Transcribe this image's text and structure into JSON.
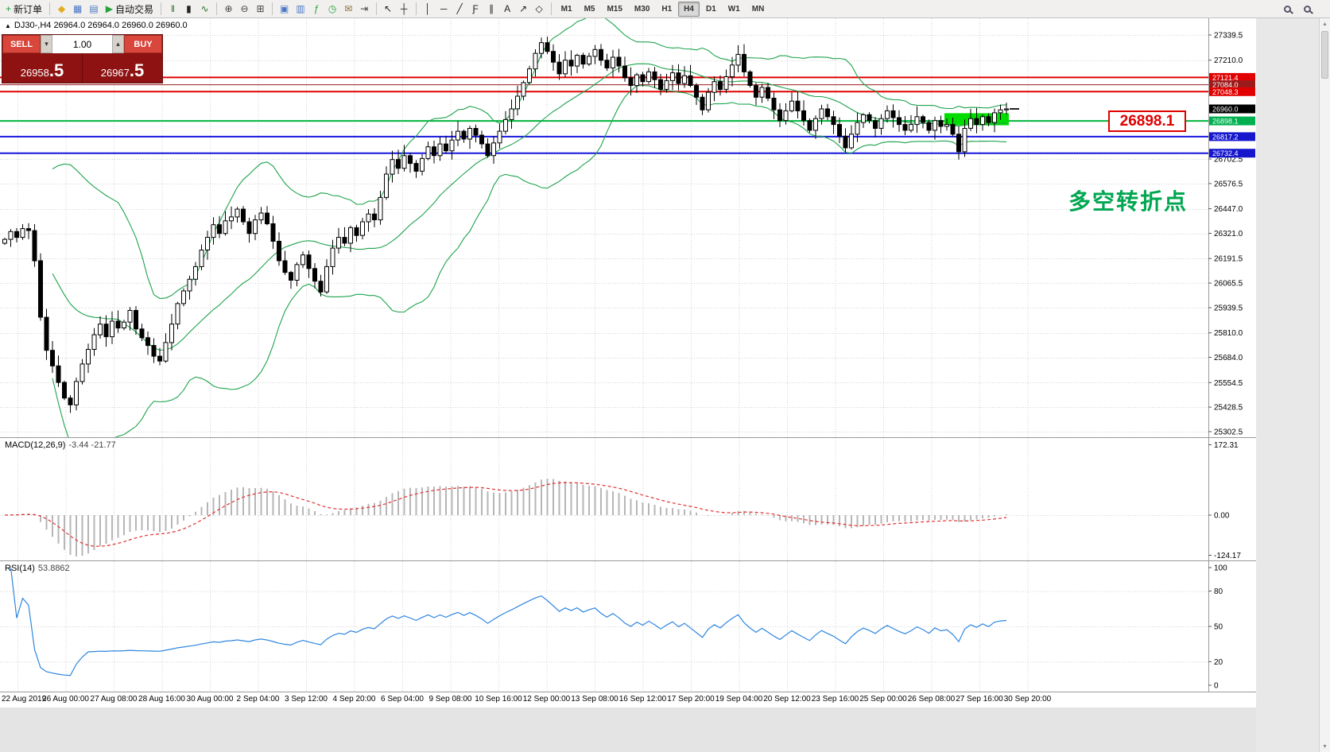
{
  "icons": {
    "triangle_up": "▲",
    "spin_up": "▴",
    "spin_down": "▾",
    "scroll_up": "▲",
    "scroll_down": "▼"
  },
  "toolbar": {
    "groups": [
      {
        "items": [
          {
            "name": "new-order-button",
            "glyph": "+",
            "glyph_color": "#1fa33f",
            "label": "新订单"
          }
        ]
      },
      {
        "items": [
          {
            "name": "metaeditor-button",
            "glyph": "◆",
            "glyph_color": "#e2aa1f"
          },
          {
            "name": "charts-button",
            "glyph": "▦",
            "glyph_color": "#4a77c4"
          },
          {
            "name": "profiles-button",
            "glyph": "▤",
            "glyph_color": "#4a77c4"
          },
          {
            "name": "autotrading-button",
            "glyph": "▶",
            "glyph_color": "#27a23d",
            "label": "自动交易"
          }
        ]
      },
      {
        "items": [
          {
            "name": "chart-bars-button",
            "glyph": "‖",
            "glyph_color": "#2a6e2a"
          },
          {
            "name": "chart-candles-button",
            "glyph": "▮",
            "glyph_color": "#222222"
          },
          {
            "name": "chart-line-button",
            "glyph": "∿",
            "glyph_color": "#2a6e2a"
          }
        ]
      },
      {
        "items": [
          {
            "name": "zoom-in-button",
            "glyph": "⊕",
            "glyph_color": "#444444"
          },
          {
            "name": "zoom-out-button",
            "glyph": "⊖",
            "glyph_color": "#444444"
          },
          {
            "name": "grid-button",
            "glyph": "⊞",
            "glyph_color": "#444444"
          }
        ]
      },
      {
        "items": [
          {
            "name": "tile-windows-button",
            "glyph": "▣",
            "glyph_color": "#4a77c4"
          },
          {
            "name": "cascade-windows-button",
            "glyph": "▥",
            "glyph_color": "#4a77c4"
          },
          {
            "name": "indicators-button",
            "glyph": "ƒ",
            "glyph_color": "#27a23d"
          },
          {
            "name": "period-button",
            "glyph": "◷",
            "glyph_color": "#27a23d"
          },
          {
            "name": "templates-button",
            "glyph": "✉",
            "glyph_color": "#8a6d3b"
          },
          {
            "name": "chart-shift-button",
            "glyph": "⇥",
            "glyph_color": "#444444"
          }
        ]
      },
      {
        "items": [
          {
            "name": "cursor-button",
            "glyph": "↖",
            "glyph_color": "#222222"
          },
          {
            "name": "crosshair-button",
            "glyph": "┼",
            "glyph_color": "#222222"
          }
        ]
      },
      {
        "items": [
          {
            "name": "vertical-line-button",
            "glyph": "│",
            "glyph_color": "#222222"
          },
          {
            "name": "horizontal-line-button",
            "glyph": "─",
            "glyph_color": "#222222"
          },
          {
            "name": "trendline-button",
            "glyph": "╱",
            "glyph_color": "#222222"
          },
          {
            "name": "fibonacci-button",
            "glyph": "Ƒ",
            "glyph_color": "#222222"
          },
          {
            "name": "channel-button",
            "glyph": "∥",
            "glyph_color": "#222222"
          },
          {
            "name": "text-button",
            "glyph": "A",
            "glyph_color": "#222222"
          },
          {
            "name": "arrows-button",
            "glyph": "↗",
            "glyph_color": "#222222"
          },
          {
            "name": "shapes-button",
            "glyph": "◇",
            "glyph_color": "#222222"
          }
        ]
      },
      {
        "items": [
          {
            "name": "timeframe-m1-button",
            "text": "M1"
          },
          {
            "name": "timeframe-m5-button",
            "text": "M5"
          },
          {
            "name": "timeframe-m15-button",
            "text": "M15"
          },
          {
            "name": "timeframe-m30-button",
            "text": "M30"
          },
          {
            "name": "timeframe-h1-button",
            "text": "H1"
          },
          {
            "name": "timeframe-h4-button",
            "text": "H4",
            "active": true
          },
          {
            "name": "timeframe-d1-button",
            "text": "D1"
          },
          {
            "name": "timeframe-w1-button",
            "text": "W1"
          },
          {
            "name": "timeframe-mn-button",
            "text": "MN"
          }
        ]
      }
    ],
    "right_items": [
      {
        "name": "symbol-search-button"
      },
      {
        "name": "quick-search-button"
      }
    ]
  },
  "trade_panel": {
    "sell_label": "SELL",
    "buy_label": "BUY",
    "lot_value": "1.00",
    "sell_price_main": "26958",
    "sell_price_big": ".5",
    "buy_price_main": "26967",
    "buy_price_big": ".5"
  },
  "chart_data": {
    "type": "candlestick",
    "symbol": "DJ30-",
    "period": "H4",
    "ohlc_label": "DJ30-,H4  26964.0 26964.0 26960.0 26960.0",
    "last_bar_ohlc": [
      26964.0,
      26964.0,
      26960.0,
      26960.0
    ],
    "current_price": 26960.0,
    "first_open": 26270,
    "closes": [
      26290,
      26330,
      26300,
      26345,
      26335,
      26180,
      25890,
      25720,
      25640,
      25555,
      25475,
      25440,
      25560,
      25650,
      25725,
      25800,
      25855,
      25790,
      25870,
      25835,
      25865,
      25925,
      25830,
      25785,
      25745,
      25690,
      25665,
      25760,
      25855,
      25960,
      26025,
      26085,
      26150,
      26235,
      26300,
      26365,
      26320,
      26385,
      26405,
      26445,
      26380,
      26320,
      26390,
      26425,
      26370,
      26280,
      26180,
      26120,
      26080,
      26160,
      26210,
      26140,
      26075,
      26020,
      26150,
      26245,
      26300,
      26270,
      26350,
      26310,
      26380,
      26420,
      26390,
      26505,
      26625,
      26700,
      26655,
      26720,
      26680,
      26640,
      26705,
      26765,
      26720,
      26780,
      26745,
      26800,
      26845,
      26805,
      26860,
      26825,
      26780,
      26720,
      26785,
      26845,
      26905,
      26960,
      27025,
      27095,
      27165,
      27245,
      27300,
      27255,
      27200,
      27140,
      27210,
      27180,
      27235,
      27190,
      27230,
      27265,
      27210,
      27170,
      27225,
      27180,
      27120,
      27080,
      27135,
      27100,
      27150,
      27110,
      27060,
      27105,
      27145,
      27090,
      27130,
      27080,
      27020,
      26955,
      27045,
      27100,
      27060,
      27125,
      27185,
      27240,
      27150,
      27080,
      27020,
      27070,
      27015,
      26955,
      26900,
      26950,
      27000,
      26950,
      26900,
      26850,
      26910,
      26960,
      26920,
      26880,
      26820,
      26760,
      26830,
      26890,
      26930,
      26900,
      26860,
      26910,
      26950,
      26915,
      26880,
      26850,
      26880,
      26920,
      26890,
      26850,
      26900,
      26870,
      26880,
      26830,
      26740,
      26860,
      26910,
      26880,
      26920,
      26890,
      26940,
      26955,
      26960
    ],
    "bollinger": {
      "period": 20,
      "deviation": 2,
      "color": "#1fa34d"
    },
    "price_axis": {
      "ticks": [
        "27339.5",
        "27210.0",
        "26702.5",
        "26576.5",
        "26447.0",
        "26321.0",
        "26191.5",
        "26065.5",
        "25939.5",
        "25810.0",
        "25684.0",
        "25554.5",
        "25428.5",
        "25302.5"
      ]
    },
    "price_tags": [
      {
        "text": "27121.4",
        "price": 27121.4,
        "bg": "#e00000"
      },
      {
        "text": "27084.0",
        "price": 27084.0,
        "bg": "#9b1b1b"
      },
      {
        "text": "27048.3",
        "price": 27048.3,
        "bg": "#e00000"
      },
      {
        "text": "26960.0",
        "price": 26960.0,
        "bg": "#000000"
      },
      {
        "text": "26898.1",
        "price": 26898.1,
        "bg": "#00b050"
      },
      {
        "text": "26817.2",
        "price": 26817.2,
        "bg": "#1616cd"
      },
      {
        "text": "26732.4",
        "price": 26732.4,
        "bg": "#1616cd"
      }
    ],
    "hlines": [
      {
        "price": 27121.4,
        "color": "#e00000",
        "width": 2
      },
      {
        "price": 27084.0,
        "color": "#9b1b1b",
        "width": 1
      },
      {
        "price": 27048.3,
        "color": "#e00000",
        "width": 2
      },
      {
        "price": 26898.1,
        "color": "#00b43c",
        "width": 2
      },
      {
        "price": 26817.2,
        "color": "#1616dd",
        "width": 2
      },
      {
        "price": 26732.4,
        "color": "#1616dd",
        "width": 2
      }
    ],
    "highlight_rect": {
      "from_bar": 158,
      "to_bar": 168,
      "price_top": 26938,
      "price_bottom": 26876,
      "color": "#00dc00"
    },
    "annotations": {
      "price_label": "26898.1",
      "turning_point_note": "多空转折点",
      "note_color": "#00a651"
    },
    "time_labels": [
      "22 Aug 2019",
      "26 Aug 00:00",
      "27 Aug 08:00",
      "28 Aug 16:00",
      "30 Aug 00:00",
      "2 Sep 04:00",
      "3 Sep 12:00",
      "4 Sep 20:00",
      "6 Sep 04:00",
      "9 Sep 08:00",
      "10 Sep 16:00",
      "12 Sep 00:00",
      "13 Sep 08:00",
      "16 Sep 12:00",
      "17 Sep 20:00",
      "19 Sep 04:00",
      "20 Sep 12:00",
      "23 Sep 16:00",
      "25 Sep 00:00",
      "26 Sep 08:00",
      "27 Sep 16:00",
      "30 Sep 20:00"
    ],
    "macd": {
      "label": "MACD(12,26,9)",
      "values_text": "-3.44 -21.77",
      "params": [
        12,
        26,
        9
      ],
      "axis_ticks": [
        "172.31",
        "0.00",
        "-124.17"
      ],
      "histogram_color": "#b6b6b6",
      "signal_color": "#e03030"
    },
    "rsi": {
      "label": "RSI(14)",
      "value_text": "53.8862",
      "period": 14,
      "axis_ticks": [
        "100",
        "80",
        "50",
        "20",
        "0"
      ],
      "levels": [
        80,
        50,
        20
      ],
      "line_color": "#2e86e0"
    }
  }
}
